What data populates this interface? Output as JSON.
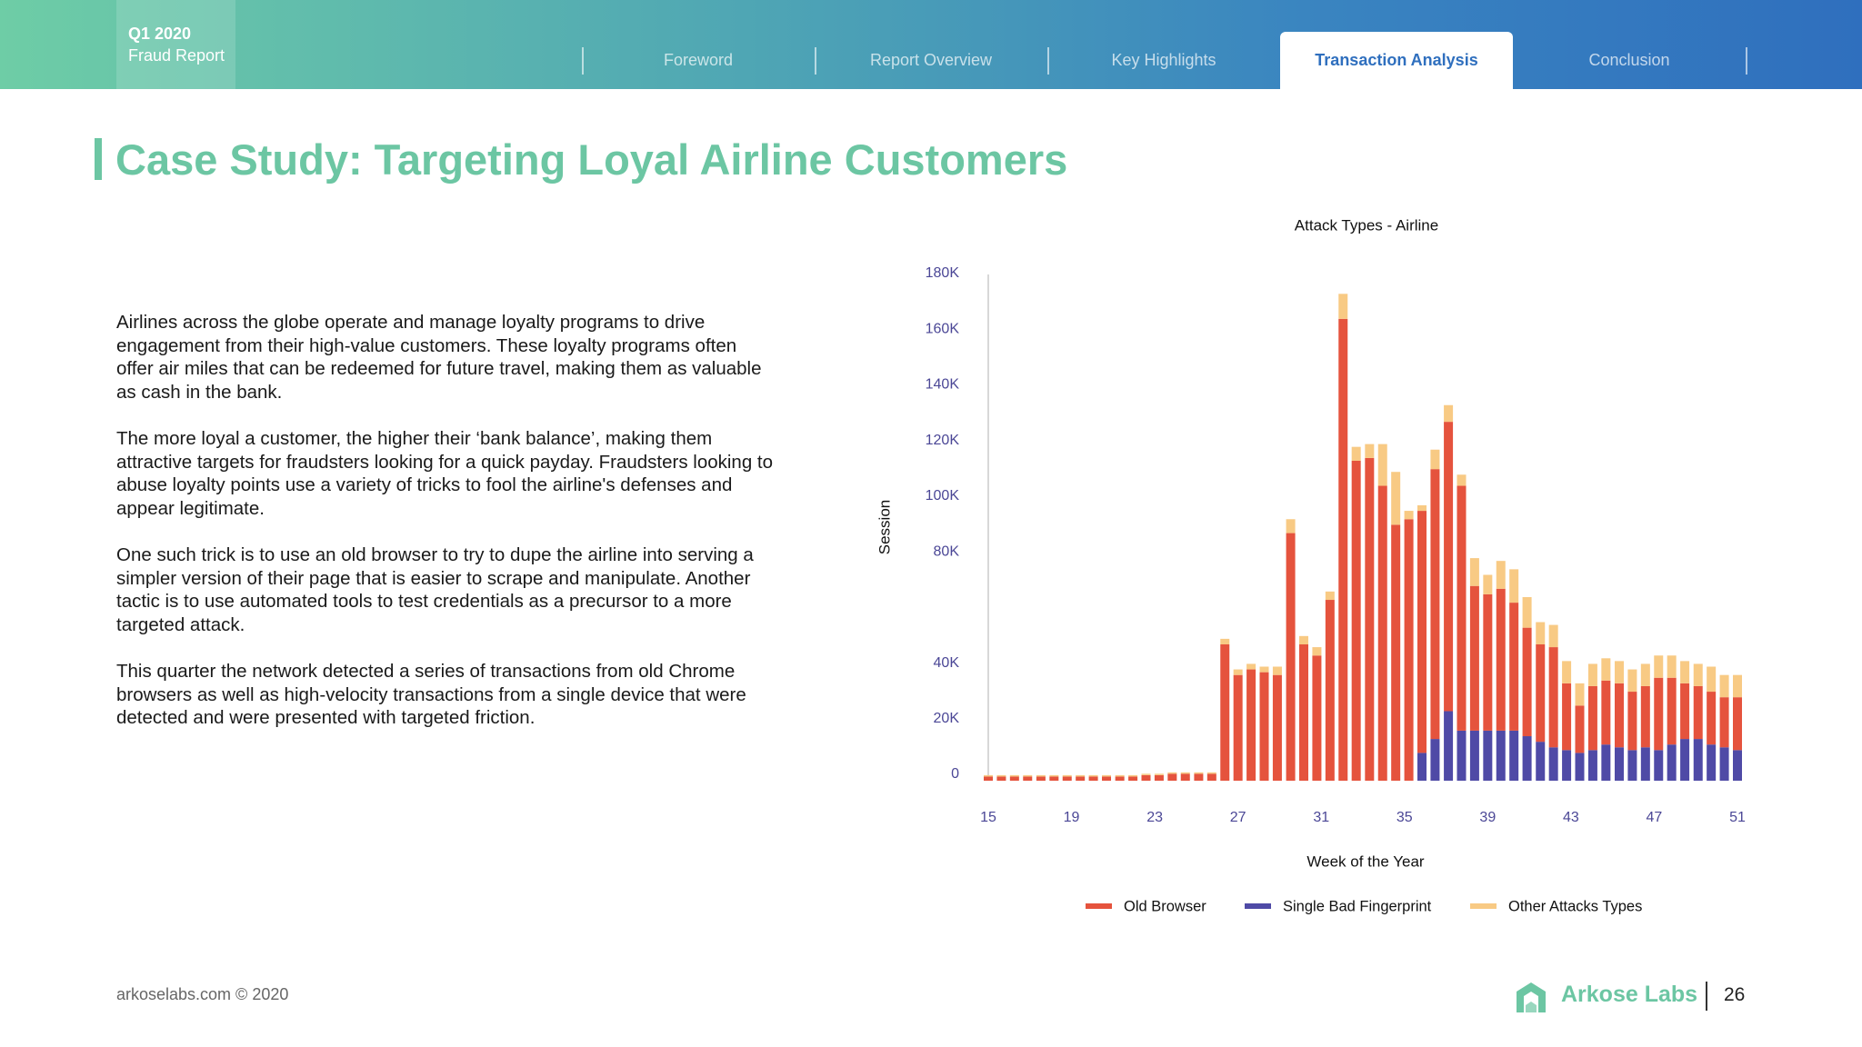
{
  "header": {
    "badge": [
      "Q1 2020",
      "Fraud Report"
    ],
    "nav": [
      "Foreword",
      "Report Overview",
      "Key Highlights",
      "Transaction Analysis",
      "Conclusion"
    ],
    "active": 3
  },
  "title": "Case Study: Targeting Loyal Airline Customers",
  "paragraphs": [
    "Airlines across the globe operate and manage loyalty programs to drive engagement from their high-value customers. These loyalty programs often offer air miles that can be redeemed for future travel, making them as valuable as cash in the bank.",
    "The more loyal a customer, the higher their ‘bank balance’, making them attractive targets for fraudsters looking for a quick payday. Fraudsters looking to abuse loyalty points use a variety of tricks to fool the airline's defenses and appear legitimate.",
    "One such trick is to use an old browser to try to dupe the airline into serving a simpler version of their page that is easier to scrape and manipulate. Another tactic is to use automated tools to test credentials as a precursor to a more targeted attack.",
    "This quarter the network detected a series of transactions from old Chrome browsers as well as high-velocity transactions from a single device that were detected and were presented with targeted friction."
  ],
  "chart_data": {
    "type": "stacked_bar",
    "title": "Attack Types - Airline",
    "x_label": "Week of the Year",
    "y_label": "Session",
    "x": [
      15.0,
      15.63,
      16.26,
      16.89,
      17.53,
      18.16,
      18.79,
      19.42,
      20.05,
      20.68,
      21.32,
      21.95,
      22.58,
      23.21,
      23.84,
      24.47,
      25.11,
      25.74,
      26.37,
      27.0,
      27.63,
      28.26,
      28.89,
      29.53,
      30.16,
      30.79,
      31.42,
      32.05,
      32.68,
      33.32,
      33.95,
      34.58,
      35.21,
      35.84,
      36.47,
      37.11,
      37.74,
      38.37,
      39.0,
      39.63,
      40.26,
      40.89,
      41.53,
      42.16,
      42.79,
      43.42,
      44.05,
      44.68,
      45.32,
      45.95,
      46.58,
      47.21,
      47.84,
      48.47,
      49.11,
      49.74,
      50.37,
      51.0
    ],
    "xlim": [
      15,
      51
    ],
    "xticks": [
      15,
      19,
      23,
      27,
      31,
      35,
      39,
      43,
      47,
      51
    ],
    "ylim": [
      0,
      180000
    ],
    "yticks": [
      0,
      {
        "value": 20000,
        "label": "20K"
      },
      {
        "value": 40000,
        "label": "40K"
      },
      {
        "value": 80000,
        "label": "80K"
      },
      {
        "value": 100000,
        "label": "100K"
      },
      {
        "value": 120000,
        "label": "120K"
      },
      {
        "value": 140000,
        "label": "140K"
      },
      {
        "value": 160000,
        "label": "160K"
      },
      {
        "value": 180000,
        "label": "180K"
      }
    ],
    "grid": false,
    "legend": "bottom",
    "series": [
      {
        "name": "Old Browser",
        "color": "#e5533d",
        "values": [
          1500,
          1500,
          1500,
          1500,
          1500,
          1500,
          1500,
          1500,
          1500,
          1500,
          1500,
          1500,
          2000,
          2000,
          2500,
          2500,
          2500,
          2500,
          49000,
          38000,
          40000,
          39000,
          38000,
          89000,
          49000,
          45000,
          65000,
          166000,
          115000,
          116000,
          106000,
          92000,
          94000,
          87000,
          97000,
          104000,
          88000,
          52000,
          49000,
          51000,
          46000,
          39000,
          35000,
          36000,
          24000,
          17000,
          23000,
          23000,
          23000,
          21000,
          22000,
          26000,
          24000,
          20000,
          19000,
          19000,
          18000,
          19000
        ]
      },
      {
        "name": "Single Bad Fingerprint",
        "color": "#4f4aa6",
        "values": [
          0,
          0,
          0,
          0,
          0,
          0,
          0,
          0,
          0,
          0,
          0,
          0,
          0,
          0,
          0,
          0,
          0,
          0,
          0,
          0,
          0,
          0,
          0,
          0,
          0,
          0,
          0,
          0,
          0,
          0,
          0,
          0,
          0,
          10000,
          15000,
          25000,
          18000,
          18000,
          18000,
          18000,
          18000,
          16000,
          14000,
          12000,
          11000,
          10000,
          11000,
          13000,
          12000,
          11000,
          12000,
          11000,
          13000,
          15000,
          15000,
          13000,
          12000,
          11000
        ]
      },
      {
        "name": "Other Attacks Types",
        "color": "#f8ca84",
        "values": [
          500,
          500,
          500,
          500,
          500,
          500,
          500,
          500,
          500,
          500,
          500,
          500,
          500,
          500,
          500,
          500,
          500,
          500,
          2000,
          2000,
          2000,
          2000,
          3000,
          5000,
          3000,
          3000,
          3000,
          9000,
          5000,
          5000,
          15000,
          19000,
          3000,
          2000,
          7000,
          6000,
          4000,
          10000,
          7000,
          10000,
          12000,
          11000,
          8000,
          8000,
          8000,
          8000,
          8000,
          8000,
          8000,
          8000,
          8000,
          8000,
          8000,
          8000,
          8000,
          9000,
          8000,
          8000
        ]
      }
    ]
  },
  "footer": {
    "copyright": "arkoselabs.com © 2020",
    "brand": "Arkose Labs",
    "page": "26"
  }
}
